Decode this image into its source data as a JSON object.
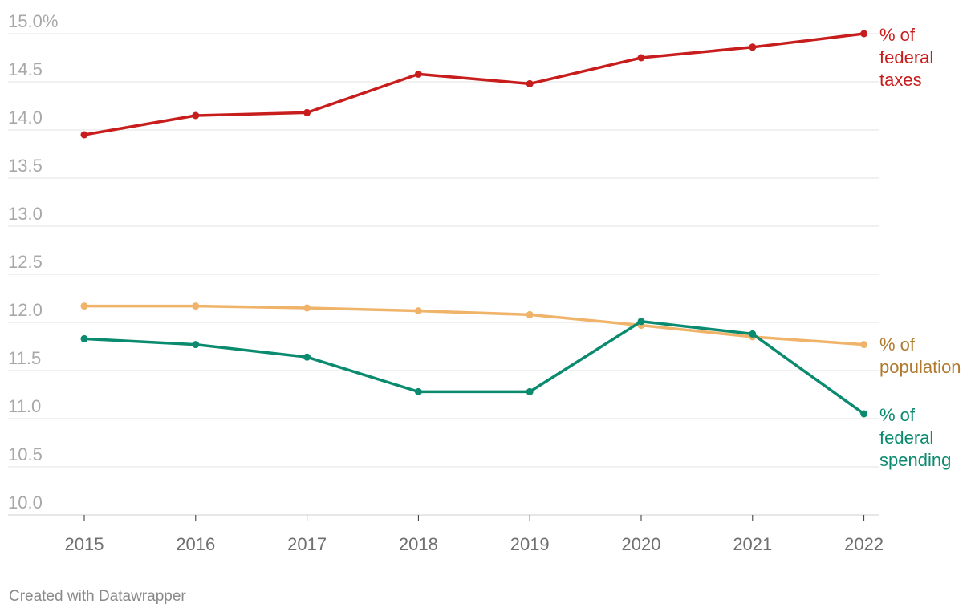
{
  "chart_data": {
    "type": "line",
    "x": [
      "2015",
      "2016",
      "2017",
      "2018",
      "2019",
      "2020",
      "2021",
      "2022"
    ],
    "ylim": [
      10.0,
      15.0
    ],
    "yticks": [
      "15.0%",
      "14.5",
      "14.0",
      "13.5",
      "13.0",
      "12.5",
      "12.0",
      "11.5",
      "11.0",
      "10.5",
      "10.0"
    ],
    "ytick_values": [
      15.0,
      14.5,
      14.0,
      13.5,
      13.0,
      12.5,
      12.0,
      11.5,
      11.0,
      10.5,
      10.0
    ],
    "grid": true,
    "series": [
      {
        "name": "% of federal taxes",
        "label_lines": [
          "% of",
          "federal",
          "taxes"
        ],
        "color": "#c71e1d",
        "values": [
          13.95,
          14.15,
          14.18,
          14.58,
          14.48,
          14.75,
          14.86,
          15.0
        ]
      },
      {
        "name": "% of population",
        "label_lines": [
          "% of",
          "population"
        ],
        "color": "#f0b36a",
        "label_color": "#b07a2e",
        "values": [
          12.17,
          12.17,
          12.15,
          12.12,
          12.08,
          11.97,
          11.85,
          11.77
        ]
      },
      {
        "name": "% of federal spending",
        "label_lines": [
          "% of",
          "federal",
          "spending"
        ],
        "color": "#0a8a6e",
        "values": [
          11.83,
          11.77,
          11.64,
          11.28,
          11.28,
          12.01,
          11.88,
          11.05
        ]
      }
    ]
  },
  "footer": {
    "credit": "Created with Datawrapper"
  }
}
